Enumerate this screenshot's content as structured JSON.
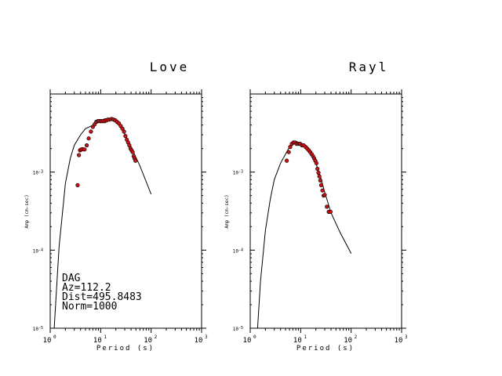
{
  "chart_data": [
    {
      "type": "scatter",
      "title": "Love",
      "xlabel": "Period (s)",
      "ylabel": "Amp (cm-sec)",
      "xscale": "log",
      "yscale": "log",
      "xlim": [
        1,
        1000
      ],
      "ylim": [
        1e-05,
        0.01
      ],
      "x_ticks": [
        "10^0",
        "10^1",
        "10^2",
        "10^3"
      ],
      "y_ticks": [
        "10^-5",
        "10^-4",
        "10^-3"
      ],
      "annotation": [
        "DAG",
        "Az=112.2",
        "Dist=495.8483",
        "Norm=1000"
      ],
      "series": [
        {
          "kind": "line",
          "points": [
            [
              1.2,
              1e-05
            ],
            [
              1.5,
              0.00011
            ],
            [
              2.0,
              0.00072
            ],
            [
              2.5,
              0.0015
            ],
            [
              3.0,
              0.0022
            ],
            [
              4.0,
              0.003
            ],
            [
              5.0,
              0.0036
            ],
            [
              6.0,
              0.0038
            ],
            [
              7.0,
              0.004
            ],
            [
              8.0,
              0.0043
            ],
            [
              10,
              0.0046
            ],
            [
              12,
              0.0048
            ],
            [
              15,
              0.0049
            ],
            [
              18,
              0.0048
            ],
            [
              22,
              0.0044
            ],
            [
              26,
              0.0039
            ],
            [
              30,
              0.0031
            ],
            [
              40,
              0.0021
            ],
            [
              60,
              0.0012
            ],
            [
              100,
              0.00052
            ]
          ]
        },
        {
          "kind": "points",
          "points": [
            [
              3.5,
              0.00068
            ],
            [
              3.7,
              0.00165
            ],
            [
              3.9,
              0.0019
            ],
            [
              4.1,
              0.00195
            ],
            [
              4.4,
              0.00196
            ],
            [
              4.8,
              0.00195
            ],
            [
              5.3,
              0.0022
            ],
            [
              5.8,
              0.0027
            ],
            [
              6.4,
              0.0033
            ],
            [
              7.0,
              0.0038
            ],
            [
              7.6,
              0.0041
            ],
            [
              8.2,
              0.0044
            ],
            [
              8.8,
              0.0045
            ],
            [
              9.5,
              0.0045
            ],
            [
              10.2,
              0.0045
            ],
            [
              11,
              0.0045
            ],
            [
              12,
              0.0045
            ],
            [
              13,
              0.0046
            ],
            [
              14,
              0.0047
            ],
            [
              15,
              0.0047
            ],
            [
              16.5,
              0.0048
            ],
            [
              18,
              0.0047
            ],
            [
              19.5,
              0.0046
            ],
            [
              21,
              0.0044
            ],
            [
              23,
              0.0042
            ],
            [
              25,
              0.0039
            ],
            [
              27,
              0.0036
            ],
            [
              29,
              0.0033
            ],
            [
              31,
              0.0029
            ],
            [
              33,
              0.0026
            ],
            [
              35,
              0.0024
            ],
            [
              37,
              0.0022
            ],
            [
              39,
              0.002
            ],
            [
              41,
              0.0019
            ],
            [
              43,
              0.0018
            ],
            [
              45,
              0.0016
            ],
            [
              47,
              0.0015
            ],
            [
              49,
              0.0014
            ]
          ]
        }
      ]
    },
    {
      "type": "scatter",
      "title": "Rayl",
      "xlabel": "Period (s)",
      "ylabel": "Amp (cm-sec)",
      "xscale": "log",
      "yscale": "log",
      "xlim": [
        1,
        1000
      ],
      "ylim": [
        1e-05,
        0.01
      ],
      "x_ticks": [
        "10^0",
        "10^1",
        "10^2",
        "10^3"
      ],
      "y_ticks": [
        "10^-5",
        "10^-4",
        "10^-3"
      ],
      "series": [
        {
          "kind": "line",
          "points": [
            [
              1.4,
              1e-05
            ],
            [
              1.6,
              4e-05
            ],
            [
              2.0,
              0.00018
            ],
            [
              2.5,
              0.00045
            ],
            [
              3.0,
              0.0008
            ],
            [
              4.0,
              0.0013
            ],
            [
              5.0,
              0.0017
            ],
            [
              6.0,
              0.0021
            ],
            [
              7.0,
              0.0024
            ],
            [
              8.0,
              0.0025
            ],
            [
              9.0,
              0.0024
            ],
            [
              11,
              0.0022
            ],
            [
              13,
              0.002
            ],
            [
              16,
              0.0017
            ],
            [
              20,
              0.0013
            ],
            [
              25,
              0.00085
            ],
            [
              30,
              0.00055
            ],
            [
              40,
              0.0003
            ],
            [
              60,
              0.00017
            ],
            [
              100,
              9.07e-05
            ]
          ]
        },
        {
          "kind": "points",
          "points": [
            [
              5.3,
              0.0014
            ],
            [
              5.8,
              0.0018
            ],
            [
              6.2,
              0.0021
            ],
            [
              6.7,
              0.0023
            ],
            [
              7.2,
              0.0024
            ],
            [
              7.7,
              0.0024
            ],
            [
              8.3,
              0.0023
            ],
            [
              9.0,
              0.0023
            ],
            [
              9.8,
              0.0023
            ],
            [
              10.6,
              0.0022
            ],
            [
              11.5,
              0.0022
            ],
            [
              12.5,
              0.0021
            ],
            [
              13.5,
              0.002
            ],
            [
              14.5,
              0.0019
            ],
            [
              15.5,
              0.0018
            ],
            [
              16.5,
              0.0017
            ],
            [
              17.5,
              0.0016
            ],
            [
              18.5,
              0.0015
            ],
            [
              19.5,
              0.0014
            ],
            [
              20.5,
              0.0013
            ],
            [
              21.5,
              0.0011
            ],
            [
              22.5,
              0.00098
            ],
            [
              23.5,
              0.00088
            ],
            [
              24.5,
              0.00078
            ],
            [
              25.5,
              0.00068
            ],
            [
              27,
              0.00058
            ],
            [
              28.5,
              0.0005
            ],
            [
              30,
              0.00051
            ],
            [
              33,
              0.00036
            ],
            [
              36,
              0.00031
            ],
            [
              39,
              0.00031
            ]
          ]
        }
      ]
    }
  ]
}
